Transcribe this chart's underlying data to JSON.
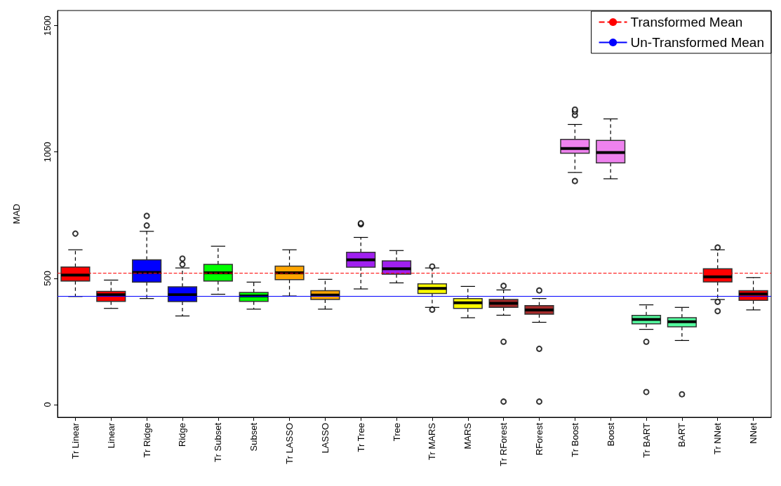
{
  "chart_data": {
    "type": "box",
    "ylabel": "MAD",
    "categories": [
      "Tr Linear",
      "Linear",
      "Tr Ridge",
      "Ridge",
      "Tr Subset",
      "Subset",
      "Tr LASSO",
      "LASSO",
      "Tr Tree",
      "Tree",
      "Tr MARS",
      "MARS",
      "Tr RForest",
      "RForest",
      "Tr Boost",
      "Boost",
      "Tr BART",
      "BART",
      "Tr NNet",
      "NNet"
    ],
    "colors": [
      "#ff0000",
      "#ff0000",
      "#0000ff",
      "#0000ff",
      "#00ff00",
      "#00ff00",
      "#ffa500",
      "#ffa500",
      "#a020f0",
      "#a020f0",
      "#ffff00",
      "#ffff00",
      "#a52a2a",
      "#a52a2a",
      "#ee82ee",
      "#ee82ee",
      "#54ff9f",
      "#54ff9f",
      "#ff0000",
      "#ff0000"
    ],
    "boxes": [
      {
        "low": 428,
        "q1": 489,
        "median": 513,
        "q3": 545,
        "high": 613,
        "outliers": [
          677
        ]
      },
      {
        "low": 381,
        "q1": 409,
        "median": 435,
        "q3": 448,
        "high": 493
      },
      {
        "low": 420,
        "q1": 485,
        "median": 523,
        "q3": 573,
        "high": 686,
        "outliers": [
          709,
          747
        ]
      },
      {
        "low": 351,
        "q1": 408,
        "median": 435,
        "q3": 466,
        "high": 541,
        "outliers": [
          555,
          578
        ]
      },
      {
        "low": 437,
        "q1": 489,
        "median": 522,
        "q3": 555,
        "high": 627
      },
      {
        "low": 378,
        "q1": 409,
        "median": 430,
        "q3": 444,
        "high": 485
      },
      {
        "low": 430,
        "q1": 495,
        "median": 522,
        "q3": 548,
        "high": 613
      },
      {
        "low": 378,
        "q1": 416,
        "median": 434,
        "q3": 451,
        "high": 496
      },
      {
        "low": 458,
        "q1": 544,
        "median": 573,
        "q3": 603,
        "high": 662,
        "outliers": [
          714,
          718
        ]
      },
      {
        "low": 482,
        "q1": 516,
        "median": 538,
        "q3": 569,
        "high": 610
      },
      {
        "low": 385,
        "q1": 440,
        "median": 460,
        "q3": 478,
        "high": 541,
        "outliers": [
          376,
          547
        ]
      },
      {
        "low": 344,
        "q1": 381,
        "median": 403,
        "q3": 420,
        "high": 468
      },
      {
        "low": 354,
        "q1": 385,
        "median": 401,
        "q3": 416,
        "high": 454,
        "outliers": [
          12,
          249,
          470
        ]
      },
      {
        "low": 326,
        "q1": 358,
        "median": 375,
        "q3": 392,
        "high": 420,
        "outliers": [
          12,
          221,
          452
        ]
      },
      {
        "low": 919,
        "q1": 995,
        "median": 1014,
        "q3": 1050,
        "high": 1109,
        "outliers": [
          885,
          1146,
          1160,
          1168
        ]
      },
      {
        "low": 894,
        "q1": 957,
        "median": 998,
        "q3": 1046,
        "high": 1131
      },
      {
        "low": 298,
        "q1": 320,
        "median": 337,
        "q3": 353,
        "high": 395,
        "outliers": [
          50,
          249
        ]
      },
      {
        "low": 254,
        "q1": 308,
        "median": 328,
        "q3": 344,
        "high": 385,
        "outliers": [
          41
        ]
      },
      {
        "low": 416,
        "q1": 486,
        "median": 506,
        "q3": 538,
        "high": 613,
        "outliers": [
          370,
          407,
          622
        ]
      },
      {
        "low": 375,
        "q1": 413,
        "median": 438,
        "q3": 451,
        "high": 503
      }
    ],
    "ylim": [
      -50,
      1560
    ],
    "yticks": [
      0,
      500,
      1000,
      1500
    ],
    "ref_lines": [
      {
        "axis": "y",
        "value": 522,
        "label": "Transformed Mean",
        "color": "#ff0000",
        "line_style": "dashed"
      },
      {
        "axis": "y",
        "value": 430,
        "label": "Un-Transformed Mean",
        "color": "#0000ff",
        "line_style": "solid"
      }
    ],
    "legend": "top right",
    "grid": false
  }
}
